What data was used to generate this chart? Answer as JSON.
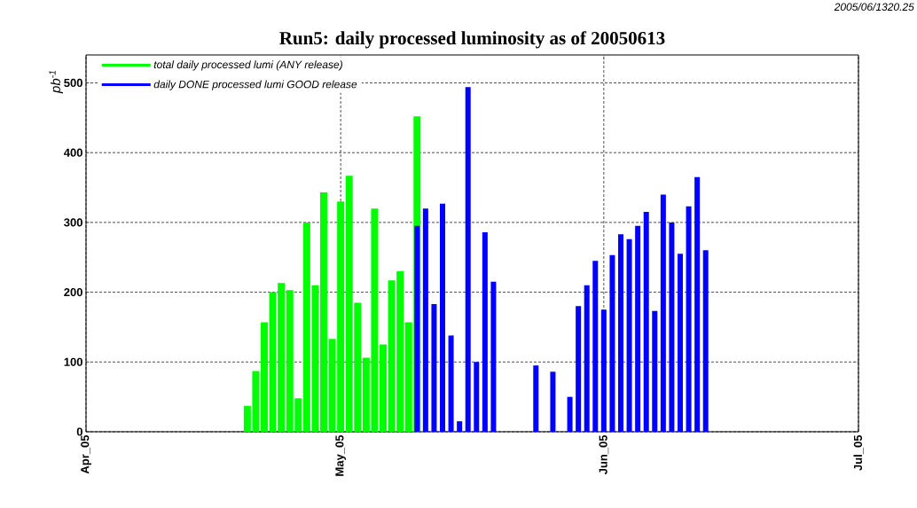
{
  "chart_data": {
    "type": "bar",
    "title": "Run5: daily processed luminosity as of 20050613",
    "ylabel": "pb$^{-1}$",
    "annotations": [
      "2005/06/1320.25"
    ],
    "xlim": [
      "2005-04-01",
      "2005-07-01"
    ],
    "xticks": [
      {
        "value": "2005-04-01",
        "label": "Apr_05"
      },
      {
        "value": "2005-05-01",
        "label": "May_05"
      },
      {
        "value": "2005-06-01",
        "label": "Jun_05"
      },
      {
        "value": "2005-07-01",
        "label": "Jul_05"
      }
    ],
    "ylim": [
      0,
      540
    ],
    "yticks": [
      0,
      100,
      200,
      300,
      400,
      500
    ],
    "grid": true,
    "legend": "top left",
    "series": [
      {
        "name": "total daily processed lumi (ANY release)",
        "color": "#00ff00",
        "x": [
          "2005-04-20",
          "2005-04-21",
          "2005-04-22",
          "2005-04-23",
          "2005-04-24",
          "2005-04-25",
          "2005-04-26",
          "2005-04-27",
          "2005-04-28",
          "2005-04-29",
          "2005-04-30",
          "2005-05-01",
          "2005-05-02",
          "2005-05-03",
          "2005-05-04",
          "2005-05-05",
          "2005-05-06",
          "2005-05-07",
          "2005-05-08",
          "2005-05-09",
          "2005-05-10"
        ],
        "values": [
          37,
          87,
          157,
          200,
          213,
          203,
          48,
          300,
          210,
          343,
          133,
          330,
          367,
          185,
          106,
          320,
          125,
          217,
          230,
          157,
          452
        ]
      },
      {
        "name": "daily DONE processed lumi GOOD release",
        "color": "#0000ff",
        "x": [
          "2005-05-10",
          "2005-05-11",
          "2005-05-12",
          "2005-05-13",
          "2005-05-14",
          "2005-05-15",
          "2005-05-16",
          "2005-05-17",
          "2005-05-18",
          "2005-05-19",
          "2005-05-24",
          "2005-05-26",
          "2005-05-28",
          "2005-05-29",
          "2005-05-30",
          "2005-05-31",
          "2005-06-01",
          "2005-06-02",
          "2005-06-03",
          "2005-06-04",
          "2005-06-05",
          "2005-06-06",
          "2005-06-07",
          "2005-06-08",
          "2005-06-09",
          "2005-06-10",
          "2005-06-11",
          "2005-06-12",
          "2005-06-13"
        ],
        "values": [
          295,
          320,
          183,
          327,
          138,
          15,
          494,
          100,
          286,
          215,
          95,
          86,
          50,
          180,
          210,
          245,
          175,
          253,
          283,
          276,
          295,
          315,
          173,
          340,
          300,
          255,
          323,
          365,
          260
        ]
      }
    ]
  }
}
